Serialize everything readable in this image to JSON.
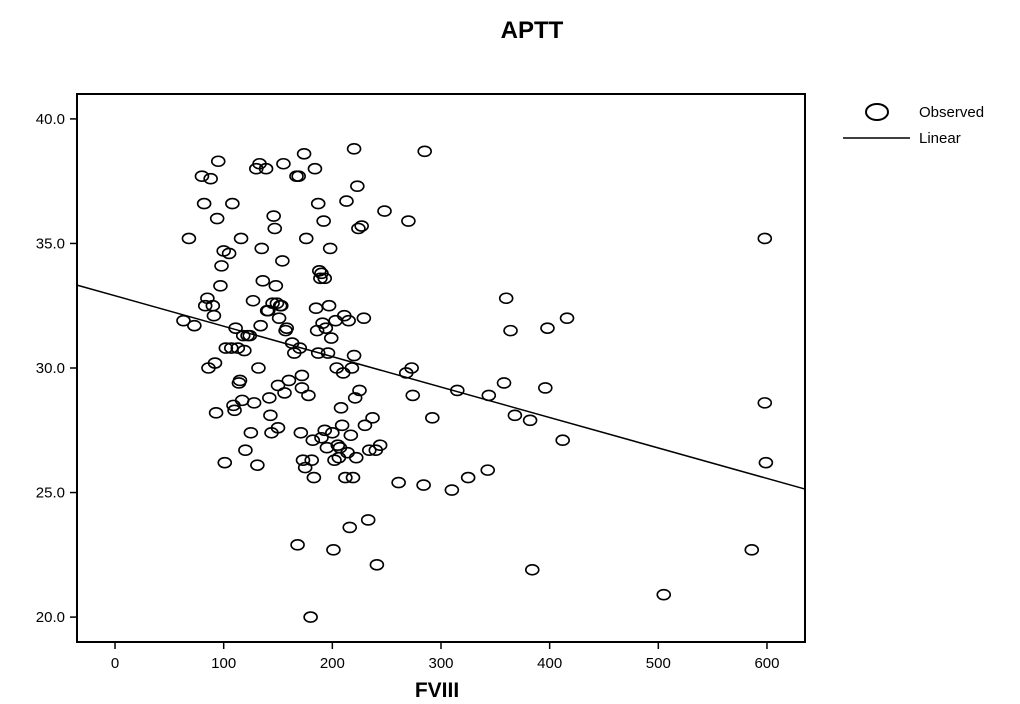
{
  "chart_data": {
    "type": "scatter",
    "title": "APTT",
    "xlabel": "FVIII",
    "ylabel": "",
    "xlim": [
      -35,
      635
    ],
    "ylim": [
      19,
      41
    ],
    "x_ticks": [
      0,
      100,
      200,
      300,
      400,
      500,
      600
    ],
    "y_ticks": [
      20,
      25,
      30,
      35,
      40
    ],
    "x_tick_labels": [
      "0",
      "100",
      "200",
      "300",
      "400",
      "500",
      "600"
    ],
    "y_tick_labels": [
      "20.0",
      "25.0",
      "30.0",
      "35.0",
      "40.0"
    ],
    "grid": false,
    "legend_position": "top-right",
    "legend": [
      {
        "label": "Observed",
        "marker": "open-circle"
      },
      {
        "label": "Linear",
        "marker": "line"
      }
    ],
    "series": [
      {
        "name": "Observed",
        "kind": "scatter",
        "points": [
          [
            63,
            31.9
          ],
          [
            68,
            35.2
          ],
          [
            73,
            31.7
          ],
          [
            80,
            37.7
          ],
          [
            82,
            36.6
          ],
          [
            83,
            32.5
          ],
          [
            85,
            32.8
          ],
          [
            86,
            30.0
          ],
          [
            88,
            37.6
          ],
          [
            90,
            32.5
          ],
          [
            91,
            32.1
          ],
          [
            92,
            30.2
          ],
          [
            93,
            28.2
          ],
          [
            94,
            36.0
          ],
          [
            95,
            38.3
          ],
          [
            97,
            33.3
          ],
          [
            98,
            34.1
          ],
          [
            100,
            34.7
          ],
          [
            101,
            26.2
          ],
          [
            102,
            30.8
          ],
          [
            105,
            34.6
          ],
          [
            107,
            30.8
          ],
          [
            108,
            36.6
          ],
          [
            109,
            28.5
          ],
          [
            110,
            28.3
          ],
          [
            111,
            31.6
          ],
          [
            113,
            30.8
          ],
          [
            114,
            29.4
          ],
          [
            115,
            29.5
          ],
          [
            116,
            35.2
          ],
          [
            117,
            28.7
          ],
          [
            118,
            31.3
          ],
          [
            119,
            30.7
          ],
          [
            120,
            26.7
          ],
          [
            122,
            31.3
          ],
          [
            124,
            31.3
          ],
          [
            125,
            27.4
          ],
          [
            127,
            32.7
          ],
          [
            128,
            28.6
          ],
          [
            130,
            38.0
          ],
          [
            131,
            26.1
          ],
          [
            132,
            30.0
          ],
          [
            133,
            38.2
          ],
          [
            134,
            31.7
          ],
          [
            135,
            34.8
          ],
          [
            136,
            33.5
          ],
          [
            139,
            38.0
          ],
          [
            140,
            32.3
          ],
          [
            141,
            32.3
          ],
          [
            142,
            28.8
          ],
          [
            143,
            28.1
          ],
          [
            144,
            27.4
          ],
          [
            145,
            32.6
          ],
          [
            146,
            36.1
          ],
          [
            147,
            35.6
          ],
          [
            148,
            33.3
          ],
          [
            149,
            32.6
          ],
          [
            150,
            27.6
          ],
          [
            150,
            29.3
          ],
          [
            151,
            32.0
          ],
          [
            152,
            32.5
          ],
          [
            153,
            32.5
          ],
          [
            154,
            34.3
          ],
          [
            155,
            38.2
          ],
          [
            156,
            29.0
          ],
          [
            157,
            31.5
          ],
          [
            158,
            31.6
          ],
          [
            160,
            29.5
          ],
          [
            163,
            31.0
          ],
          [
            165,
            30.6
          ],
          [
            167,
            37.7
          ],
          [
            168,
            22.9
          ],
          [
            169,
            37.7
          ],
          [
            170,
            30.8
          ],
          [
            171,
            27.4
          ],
          [
            172,
            29.7
          ],
          [
            172,
            29.2
          ],
          [
            173,
            26.3
          ],
          [
            174,
            38.6
          ],
          [
            175,
            26.0
          ],
          [
            176,
            35.2
          ],
          [
            178,
            28.9
          ],
          [
            180,
            20.0
          ],
          [
            181,
            26.3
          ],
          [
            182,
            27.1
          ],
          [
            183,
            25.6
          ],
          [
            184,
            38.0
          ],
          [
            185,
            32.4
          ],
          [
            186,
            31.5
          ],
          [
            187,
            30.6
          ],
          [
            187,
            36.6
          ],
          [
            188,
            33.9
          ],
          [
            189,
            33.6
          ],
          [
            190,
            33.8
          ],
          [
            190,
            27.2
          ],
          [
            191,
            31.8
          ],
          [
            192,
            35.9
          ],
          [
            193,
            27.5
          ],
          [
            193,
            33.6
          ],
          [
            194,
            31.6
          ],
          [
            195,
            26.8
          ],
          [
            196,
            30.6
          ],
          [
            197,
            32.5
          ],
          [
            198,
            34.8
          ],
          [
            199,
            31.2
          ],
          [
            200,
            27.4
          ],
          [
            201,
            22.7
          ],
          [
            202,
            26.3
          ],
          [
            203,
            31.9
          ],
          [
            204,
            30.0
          ],
          [
            205,
            26.9
          ],
          [
            206,
            26.4
          ],
          [
            207,
            26.8
          ],
          [
            208,
            28.4
          ],
          [
            209,
            27.7
          ],
          [
            210,
            29.8
          ],
          [
            211,
            32.1
          ],
          [
            212,
            25.6
          ],
          [
            213,
            36.7
          ],
          [
            214,
            26.6
          ],
          [
            215,
            31.9
          ],
          [
            216,
            23.6
          ],
          [
            217,
            27.3
          ],
          [
            218,
            30.0
          ],
          [
            219,
            25.6
          ],
          [
            220,
            38.8
          ],
          [
            220,
            30.5
          ],
          [
            221,
            28.8
          ],
          [
            222,
            26.4
          ],
          [
            223,
            37.3
          ],
          [
            224,
            35.6
          ],
          [
            225,
            29.1
          ],
          [
            227,
            35.7
          ],
          [
            229,
            32.0
          ],
          [
            230,
            27.7
          ],
          [
            233,
            23.9
          ],
          [
            234,
            26.7
          ],
          [
            237,
            28.0
          ],
          [
            240,
            26.7
          ],
          [
            241,
            22.1
          ],
          [
            244,
            26.9
          ],
          [
            248,
            36.3
          ],
          [
            261,
            25.4
          ],
          [
            268,
            29.8
          ],
          [
            270,
            35.9
          ],
          [
            273,
            30.0
          ],
          [
            274,
            28.9
          ],
          [
            284,
            25.3
          ],
          [
            285,
            38.7
          ],
          [
            292,
            28.0
          ],
          [
            310,
            25.1
          ],
          [
            315,
            29.1
          ],
          [
            325,
            25.6
          ],
          [
            343,
            25.9
          ],
          [
            344,
            28.9
          ],
          [
            358,
            29.4
          ],
          [
            360,
            32.8
          ],
          [
            364,
            31.5
          ],
          [
            368,
            28.1
          ],
          [
            382,
            27.9
          ],
          [
            384,
            21.9
          ],
          [
            396,
            29.2
          ],
          [
            398,
            31.6
          ],
          [
            412,
            27.1
          ],
          [
            416,
            32.0
          ],
          [
            505,
            20.9
          ],
          [
            586,
            22.7
          ],
          [
            598,
            35.2
          ],
          [
            598,
            28.6
          ],
          [
            599,
            26.2
          ]
        ]
      },
      {
        "name": "Linear",
        "kind": "line",
        "intercept": 32.9,
        "slope": -0.01222
      }
    ]
  }
}
